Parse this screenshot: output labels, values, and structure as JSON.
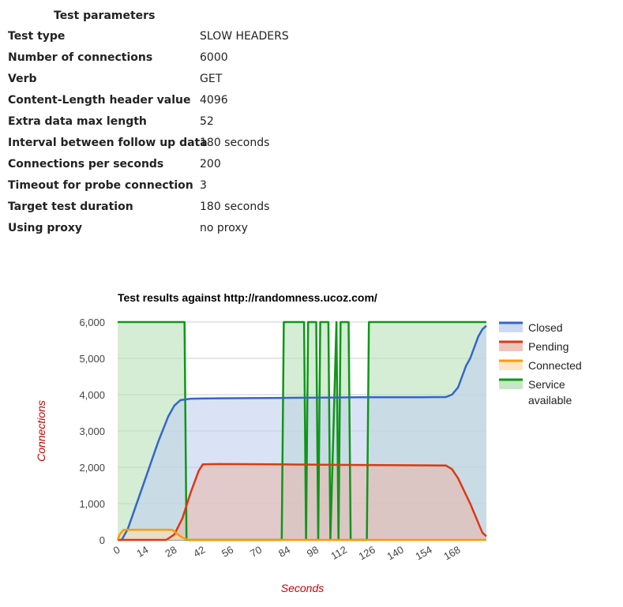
{
  "params": {
    "title": "Test parameters",
    "rows": [
      {
        "label": "Test type",
        "value": "SLOW HEADERS"
      },
      {
        "label": "Number of connections",
        "value": "6000"
      },
      {
        "label": "Verb",
        "value": "GET"
      },
      {
        "label": "Content-Length header value",
        "value": "4096"
      },
      {
        "label": "Extra data max length",
        "value": "52"
      },
      {
        "label": "Interval between follow up data",
        "value": "180 seconds"
      },
      {
        "label": "Connections per seconds",
        "value": "200"
      },
      {
        "label": "Timeout for probe connection",
        "value": "3"
      },
      {
        "label": "Target test duration",
        "value": "180 seconds"
      },
      {
        "label": "Using proxy",
        "value": "no proxy"
      }
    ]
  },
  "chart_data": {
    "type": "area",
    "title": "Test results against http://randomness.ucoz.com/",
    "xlabel": "Seconds",
    "ylabel": "Connections",
    "xlim": [
      0,
      182
    ],
    "ylim": [
      0,
      6000
    ],
    "x_ticks": [
      0,
      14,
      28,
      42,
      56,
      70,
      84,
      98,
      112,
      126,
      140,
      154,
      168
    ],
    "y_ticks": [
      0,
      1000,
      2000,
      3000,
      4000,
      5000,
      6000
    ],
    "y_tick_labels": [
      "0",
      "1,000",
      "2,000",
      "3,000",
      "4,000",
      "5,000",
      "6,000"
    ],
    "grid": true,
    "legend_position": "right",
    "series": [
      {
        "name": "Service available",
        "color": "#109618",
        "fill": "#b7e1b7",
        "points": [
          [
            0,
            6000
          ],
          [
            33,
            6000
          ],
          [
            34,
            0
          ],
          [
            81,
            0
          ],
          [
            82,
            6000
          ],
          [
            92,
            6000
          ],
          [
            93,
            0
          ],
          [
            94,
            6000
          ],
          [
            98,
            6000
          ],
          [
            99,
            0
          ],
          [
            100,
            6000
          ],
          [
            104,
            6000
          ],
          [
            105,
            0
          ],
          [
            108,
            6000
          ],
          [
            109,
            0
          ],
          [
            110,
            6000
          ],
          [
            114,
            6000
          ],
          [
            115,
            0
          ],
          [
            123,
            0
          ],
          [
            124,
            6000
          ],
          [
            182,
            6000
          ]
        ]
      },
      {
        "name": "Closed",
        "color": "#3366cc",
        "fill": "#c2d1f0",
        "points": [
          [
            0,
            0
          ],
          [
            2,
            0
          ],
          [
            5,
            300
          ],
          [
            10,
            1100
          ],
          [
            15,
            1900
          ],
          [
            20,
            2700
          ],
          [
            25,
            3400
          ],
          [
            28,
            3700
          ],
          [
            31,
            3850
          ],
          [
            36,
            3890
          ],
          [
            50,
            3900
          ],
          [
            80,
            3910
          ],
          [
            100,
            3920
          ],
          [
            120,
            3930
          ],
          [
            150,
            3930
          ],
          [
            162,
            3935
          ],
          [
            165,
            4000
          ],
          [
            168,
            4200
          ],
          [
            170,
            4500
          ],
          [
            172,
            4800
          ],
          [
            174,
            5000
          ],
          [
            176,
            5300
          ],
          [
            178,
            5600
          ],
          [
            180,
            5800
          ],
          [
            182,
            5900
          ]
        ]
      },
      {
        "name": "Pending",
        "color": "#dc3912",
        "fill": "#e8b7ad",
        "points": [
          [
            0,
            0
          ],
          [
            24,
            0
          ],
          [
            28,
            150
          ],
          [
            32,
            600
          ],
          [
            36,
            1300
          ],
          [
            40,
            1900
          ],
          [
            42,
            2080
          ],
          [
            50,
            2090
          ],
          [
            80,
            2080
          ],
          [
            100,
            2070
          ],
          [
            130,
            2060
          ],
          [
            162,
            2050
          ],
          [
            165,
            1950
          ],
          [
            168,
            1700
          ],
          [
            171,
            1350
          ],
          [
            174,
            1000
          ],
          [
            177,
            600
          ],
          [
            180,
            200
          ],
          [
            182,
            100
          ]
        ]
      },
      {
        "name": "Connected",
        "color": "#ff9900",
        "fill": "#ffe0b3",
        "points": [
          [
            0,
            0
          ],
          [
            1,
            150
          ],
          [
            3,
            280
          ],
          [
            10,
            280
          ],
          [
            20,
            280
          ],
          [
            27,
            280
          ],
          [
            29,
            180
          ],
          [
            32,
            60
          ],
          [
            35,
            0
          ],
          [
            182,
            0
          ]
        ]
      }
    ]
  }
}
